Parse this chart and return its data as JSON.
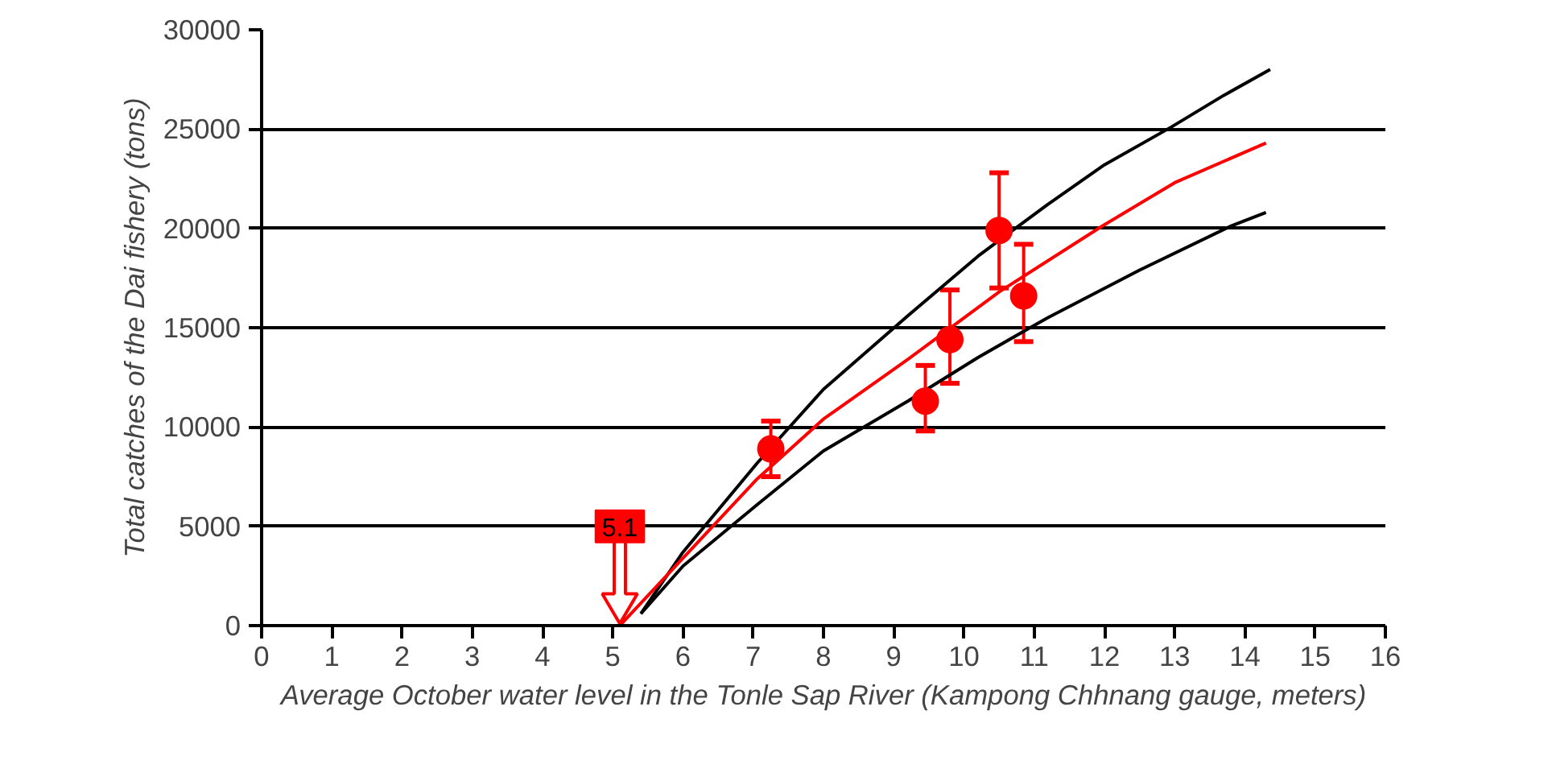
{
  "chart_data": {
    "type": "line",
    "xlabel": "Average October water level in the Tonle Sap River (Kampong Chhnang gauge, meters)",
    "ylabel": "Total catches of the Dai fishery (tons)",
    "xlim": [
      0,
      16
    ],
    "xticks": [
      0,
      1,
      2,
      3,
      4,
      5,
      6,
      7,
      8,
      9,
      10,
      11,
      12,
      13,
      14,
      15,
      16
    ],
    "ylim": [
      0,
      30000
    ],
    "yticks": [
      0,
      5000,
      10000,
      15000,
      20000,
      25000,
      30000
    ],
    "grid": "y",
    "series": [
      {
        "color": "#000000",
        "x": [
          5.4,
          6.0,
          7.06,
          8.0,
          9.2,
          10.2,
          11.19,
          12.0,
          12.95,
          13.7,
          14.36
        ],
        "values": [
          600,
          3700,
          8200,
          11900,
          15600,
          18600,
          21200,
          23200,
          25100,
          26700,
          28000
        ]
      },
      {
        "color": "#ff0000",
        "x": [
          5.1,
          6.0,
          7.06,
          8.0,
          9.2,
          10.5,
          11.96,
          13.0,
          14.3
        ],
        "values": [
          0,
          3400,
          7400,
          10400,
          13400,
          16800,
          20100,
          22300,
          24300
        ]
      },
      {
        "color": "#000000",
        "x": [
          5.4,
          6.0,
          7.06,
          8.0,
          9.2,
          10.2,
          11.19,
          12.5,
          13.79,
          14.3
        ],
        "values": [
          600,
          3000,
          6100,
          8800,
          11300,
          13500,
          15500,
          17900,
          20100,
          20800
        ]
      },
      {
        "type": "scatter",
        "color": "#ff0000",
        "marker": "circle",
        "x": [
          7.25,
          9.45,
          9.8,
          10.5,
          10.85
        ],
        "values": [
          8900,
          11300,
          14400,
          19900,
          16600
        ],
        "errors": [
          [
            7500,
            10300
          ],
          [
            9800,
            13100
          ],
          [
            12200,
            16900
          ],
          [
            17000,
            22800
          ],
          [
            14300,
            19200
          ]
        ]
      }
    ],
    "annotations": [
      {
        "text": "5.1",
        "x": 5.1,
        "y": 5000
      }
    ]
  }
}
